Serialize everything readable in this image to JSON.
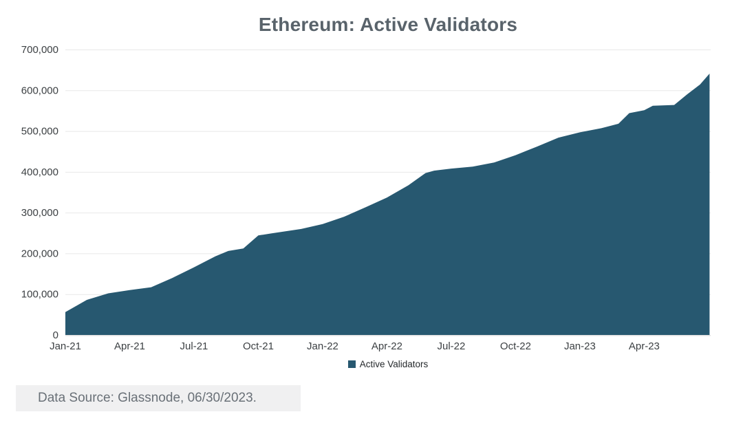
{
  "title": "Ethereum: Active Validators",
  "legend": {
    "label": "Active Validators"
  },
  "footer": {
    "source": "Data Source: Glassnode, 06/30/2023."
  },
  "colors": {
    "area": "#275870",
    "title": "#59636B",
    "grid": "#E8E8E8",
    "zero_line": "#DCDCDC",
    "tick_label": "#3C4043",
    "legend_text": "#24282B",
    "source_text": "#697077",
    "source_bg": "#F0F0F1"
  },
  "chart_data": {
    "type": "area",
    "title": "Ethereum: Active Validators",
    "xlabel": "",
    "ylabel": "",
    "x_unit": "months since Jan-2021",
    "xlim_months": [
      0,
      30.1
    ],
    "ylim": [
      0,
      700000
    ],
    "grid": "horizontal",
    "legend_position": "bottom",
    "y_ticks": [
      {
        "value": 0,
        "label": "0"
      },
      {
        "value": 100000,
        "label": "100,000"
      },
      {
        "value": 200000,
        "label": "200,000"
      },
      {
        "value": 300000,
        "label": "300,000"
      },
      {
        "value": 400000,
        "label": "400,000"
      },
      {
        "value": 500000,
        "label": "500,000"
      },
      {
        "value": 600000,
        "label": "600,000"
      },
      {
        "value": 700000,
        "label": "700,000"
      }
    ],
    "x_ticks": [
      {
        "t": 0,
        "label": "Jan-21"
      },
      {
        "t": 3,
        "label": "Apr-21"
      },
      {
        "t": 6,
        "label": "Jul-21"
      },
      {
        "t": 9,
        "label": "Oct-21"
      },
      {
        "t": 12,
        "label": "Jan-22"
      },
      {
        "t": 15,
        "label": "Apr-22"
      },
      {
        "t": 18,
        "label": "Jul-22"
      },
      {
        "t": 21,
        "label": "Oct-22"
      },
      {
        "t": 24,
        "label": "Jan-23"
      },
      {
        "t": 27,
        "label": "Apr-23"
      }
    ],
    "series": [
      {
        "name": "Active Validators",
        "points": [
          {
            "t": 0,
            "v": 56000
          },
          {
            "t": 1,
            "v": 86000
          },
          {
            "t": 2,
            "v": 102000
          },
          {
            "t": 3,
            "v": 110000
          },
          {
            "t": 4,
            "v": 117000
          },
          {
            "t": 5,
            "v": 140000
          },
          {
            "t": 6,
            "v": 166000
          },
          {
            "t": 7,
            "v": 193000
          },
          {
            "t": 7.6,
            "v": 206000
          },
          {
            "t": 8.3,
            "v": 212000
          },
          {
            "t": 9,
            "v": 244000
          },
          {
            "t": 9.6,
            "v": 249000
          },
          {
            "t": 11,
            "v": 260000
          },
          {
            "t": 12,
            "v": 272000
          },
          {
            "t": 13,
            "v": 290000
          },
          {
            "t": 14,
            "v": 313000
          },
          {
            "t": 15,
            "v": 337000
          },
          {
            "t": 16,
            "v": 367000
          },
          {
            "t": 16.8,
            "v": 397000
          },
          {
            "t": 17.2,
            "v": 403000
          },
          {
            "t": 18,
            "v": 408000
          },
          {
            "t": 19,
            "v": 413000
          },
          {
            "t": 20,
            "v": 423000
          },
          {
            "t": 21,
            "v": 441000
          },
          {
            "t": 22,
            "v": 462000
          },
          {
            "t": 23,
            "v": 484000
          },
          {
            "t": 24,
            "v": 497000
          },
          {
            "t": 25,
            "v": 507000
          },
          {
            "t": 25.8,
            "v": 518000
          },
          {
            "t": 26.3,
            "v": 544000
          },
          {
            "t": 27,
            "v": 551000
          },
          {
            "t": 27.4,
            "v": 562000
          },
          {
            "t": 28.4,
            "v": 564000
          },
          {
            "t": 29,
            "v": 590000
          },
          {
            "t": 29.6,
            "v": 614000
          },
          {
            "t": 30.05,
            "v": 641000
          }
        ]
      }
    ]
  }
}
